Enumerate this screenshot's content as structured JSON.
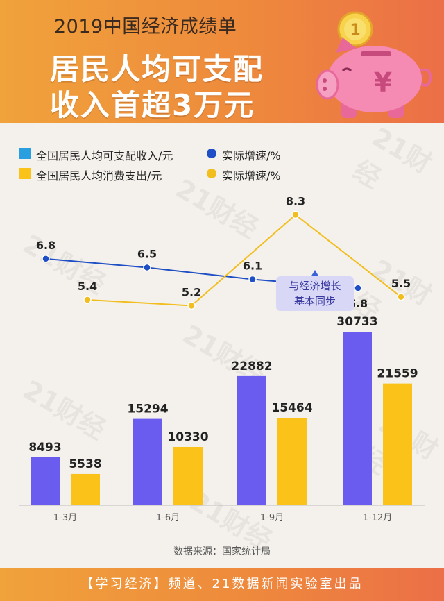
{
  "header": {
    "subtitle": "2019中国经济成绩单",
    "title_line1": "居民人均可支配",
    "title_line2": "收入首超3万元",
    "coin_symbol": "¥",
    "coin_top": "1"
  },
  "watermark": "21财经",
  "legend": {
    "income_bar": "全国居民人均可支配收入/元",
    "income_growth": "实际增速/%",
    "spend_bar": "全国居民人均消费支出/元",
    "spend_growth": "实际增速/%"
  },
  "annotation": {
    "line1": "与经济增长",
    "line2": "基本同步"
  },
  "source": "数据来源：国家统计局",
  "footer": "【学习经济】频道、21数据新闻实验室出品",
  "colors": {
    "income": "#6b5cf0",
    "spend": "#fbc21a",
    "income_line": "#1f4fc4",
    "spend_line": "#f2be1e",
    "banner": "#ee8a3c",
    "legend_income_square": "#2a9fe0"
  },
  "chart_data": {
    "type": "bar",
    "categories": [
      "1-3月",
      "1-6月",
      "1-9月",
      "1-12月"
    ],
    "series": [
      {
        "name": "全国居民人均可支配收入/元",
        "values": [
          8493,
          15294,
          22882,
          30733
        ]
      },
      {
        "name": "全国居民人均消费支出/元",
        "values": [
          5538,
          10330,
          15464,
          21559
        ]
      }
    ],
    "line_series": [
      {
        "name": "实际增速/%",
        "of": "全国居民人均可支配收入/元",
        "values": [
          6.8,
          6.5,
          6.1,
          5.8
        ]
      },
      {
        "name": "实际增速/%",
        "of": "全国居民人均消费支出/元",
        "values": [
          5.4,
          5.2,
          8.3,
          5.5
        ]
      }
    ],
    "ylim": [
      0,
      34000
    ],
    "growth_ylim": [
      4.5,
      9.0
    ],
    "grid": false,
    "legend_position": "top-left"
  }
}
